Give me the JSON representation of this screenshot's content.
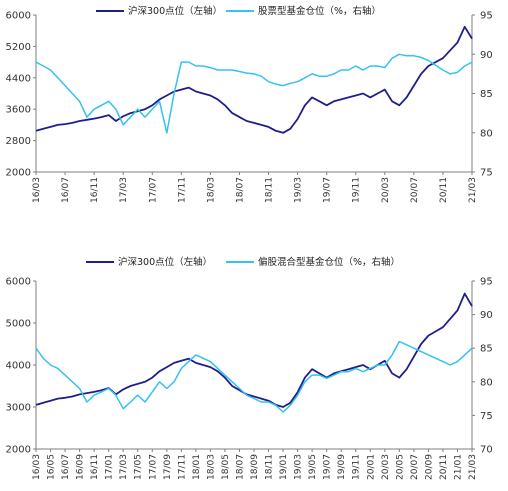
{
  "chart_data": [
    {
      "type": "line",
      "legend": [
        "沪深300点位（左轴）",
        "股票型基金仓位（%，右轴）"
      ],
      "legend_placement": "top",
      "x_tick_labels": [
        "16/03",
        "16/07",
        "16/11",
        "17/03",
        "17/07",
        "17/11",
        "18/03",
        "18/07",
        "18/11",
        "19/03",
        "19/07",
        "19/11",
        "20/03",
        "20/07",
        "20/11",
        "21/03"
      ],
      "y_left": {
        "ticks": [
          "6000",
          "5200",
          "4400",
          "3600",
          "2800",
          "2000"
        ],
        "range": [
          2000,
          6000
        ]
      },
      "y_right": {
        "ticks": [
          "95",
          "90",
          "85",
          "80",
          "75"
        ],
        "range": [
          75,
          95
        ]
      },
      "grid": false,
      "series": [
        {
          "name": "沪深300点位（左轴）",
          "axis": "left",
          "color": "#1f1f8c",
          "x": [
            0,
            1,
            2,
            3,
            4,
            5,
            6,
            7,
            8,
            9,
            10,
            11,
            12,
            13,
            14,
            15,
            16,
            17,
            18,
            19,
            20,
            21,
            22,
            23,
            24,
            25,
            26,
            27,
            28,
            29,
            30,
            31,
            32,
            33,
            34,
            35,
            36,
            37,
            38,
            39,
            40,
            41,
            42,
            43,
            44,
            45,
            46,
            47,
            48,
            49,
            50,
            51,
            52,
            53,
            54,
            55,
            56,
            57,
            58,
            59,
            60
          ],
          "values": [
            3050,
            3100,
            3150,
            3200,
            3220,
            3250,
            3300,
            3330,
            3360,
            3400,
            3450,
            3300,
            3420,
            3500,
            3550,
            3600,
            3700,
            3850,
            3950,
            4050,
            4100,
            4150,
            4050,
            4000,
            3950,
            3850,
            3700,
            3500,
            3400,
            3300,
            3250,
            3200,
            3150,
            3050,
            3000,
            3100,
            3350,
            3700,
            3900,
            3800,
            3700,
            3800,
            3850,
            3900,
            3950,
            4000,
            3900,
            4000,
            4100,
            3800,
            3700,
            3900,
            4200,
            4500,
            4700,
            4800,
            4900,
            5100,
            5300,
            5700,
            5400
          ]
        },
        {
          "name": "股票型基金仓位（%，右轴）",
          "axis": "right",
          "color": "#33c2f2",
          "x": [
            0,
            1,
            2,
            3,
            4,
            5,
            6,
            7,
            8,
            9,
            10,
            11,
            12,
            13,
            14,
            15,
            16,
            17,
            18,
            19,
            20,
            21,
            22,
            23,
            24,
            25,
            26,
            27,
            28,
            29,
            30,
            31,
            32,
            33,
            34,
            35,
            36,
            37,
            38,
            39,
            40,
            41,
            42,
            43,
            44,
            45,
            46,
            47,
            48,
            49,
            50,
            51,
            52,
            53,
            54,
            55,
            56,
            57,
            58,
            59,
            60
          ],
          "values": [
            89,
            88.5,
            88,
            87,
            86,
            85,
            84,
            82,
            83,
            83.5,
            84,
            83,
            81,
            82,
            83,
            82,
            83,
            84,
            80,
            85,
            89,
            89,
            88.5,
            88.5,
            88.3,
            88,
            88,
            88,
            87.8,
            87.6,
            87.5,
            87.2,
            86.5,
            86.2,
            86,
            86.3,
            86.5,
            87,
            87.5,
            87.2,
            87.2,
            87.5,
            88,
            88,
            88.5,
            88,
            88.5,
            88.5,
            88.3,
            89.5,
            90,
            89.8,
            89.8,
            89.6,
            89.2,
            88.6,
            88,
            87.5,
            87.7,
            88.5,
            89
          ]
        }
      ]
    },
    {
      "type": "line",
      "legend": [
        "沪深300点位（左轴）",
        "偏股混合型基金仓位（%，右轴）"
      ],
      "legend_placement": "top",
      "x_tick_labels": [
        "16/03",
        "16/05",
        "16/07",
        "16/09",
        "16/11",
        "17/01",
        "17/03",
        "17/05",
        "17/07",
        "17/09",
        "17/11",
        "18/01",
        "18/03",
        "18/05",
        "18/07",
        "18/09",
        "18/11",
        "19/01",
        "19/03",
        "19/05",
        "19/07",
        "19/09",
        "19/11",
        "20/01",
        "20/03",
        "20/05",
        "20/07",
        "20/09",
        "20/11",
        "21/01",
        "21/03"
      ],
      "y_left": {
        "ticks": [
          "6000",
          "5000",
          "4000",
          "3000",
          "2000"
        ],
        "range": [
          2000,
          6000
        ]
      },
      "y_right": {
        "ticks": [
          "95",
          "90",
          "85",
          "80",
          "75",
          "70"
        ],
        "range": [
          70,
          95
        ]
      },
      "grid": false,
      "series": [
        {
          "name": "沪深300点位（左轴）",
          "axis": "left",
          "color": "#1f1f8c",
          "x": [
            0,
            1,
            2,
            3,
            4,
            5,
            6,
            7,
            8,
            9,
            10,
            11,
            12,
            13,
            14,
            15,
            16,
            17,
            18,
            19,
            20,
            21,
            22,
            23,
            24,
            25,
            26,
            27,
            28,
            29,
            30,
            31,
            32,
            33,
            34,
            35,
            36,
            37,
            38,
            39,
            40,
            41,
            42,
            43,
            44,
            45,
            46,
            47,
            48,
            49,
            50,
            51,
            52,
            53,
            54,
            55,
            56,
            57,
            58,
            59,
            60
          ],
          "values": [
            3050,
            3100,
            3150,
            3200,
            3220,
            3250,
            3300,
            3330,
            3360,
            3400,
            3450,
            3300,
            3420,
            3500,
            3550,
            3600,
            3700,
            3850,
            3950,
            4050,
            4100,
            4150,
            4050,
            4000,
            3950,
            3850,
            3700,
            3500,
            3400,
            3300,
            3250,
            3200,
            3150,
            3050,
            3000,
            3100,
            3350,
            3700,
            3900,
            3800,
            3700,
            3800,
            3850,
            3900,
            3950,
            4000,
            3900,
            4000,
            4100,
            3800,
            3700,
            3900,
            4200,
            4500,
            4700,
            4800,
            4900,
            5100,
            5300,
            5700,
            5400
          ]
        },
        {
          "name": "偏股混合型基金仓位（%，右轴）",
          "axis": "right",
          "color": "#33c2f2",
          "x": [
            0,
            1,
            2,
            3,
            4,
            5,
            6,
            7,
            8,
            9,
            10,
            11,
            12,
            13,
            14,
            15,
            16,
            17,
            18,
            19,
            20,
            21,
            22,
            23,
            24,
            25,
            26,
            27,
            28,
            29,
            30,
            31,
            32,
            33,
            34,
            35,
            36,
            37,
            38,
            39,
            40,
            41,
            42,
            43,
            44,
            45,
            46,
            47,
            48,
            49,
            50,
            51,
            52,
            53,
            54,
            55,
            56,
            57,
            58,
            59,
            60
          ],
          "values": [
            85,
            83.5,
            82.5,
            82,
            81,
            80,
            79,
            77,
            78,
            78.5,
            79,
            78,
            76,
            77,
            78,
            77,
            78.5,
            80,
            79,
            80,
            82,
            83,
            84,
            83.5,
            83,
            82,
            81,
            80,
            79,
            78,
            77.5,
            77,
            77,
            76.5,
            75.5,
            76.5,
            78,
            80,
            81,
            81,
            80.5,
            81,
            81.5,
            81.5,
            82,
            81.5,
            82,
            82.5,
            82.5,
            84,
            86,
            85.5,
            85,
            84.5,
            84,
            83.5,
            83,
            82.5,
            83,
            84,
            85
          ]
        }
      ]
    }
  ]
}
